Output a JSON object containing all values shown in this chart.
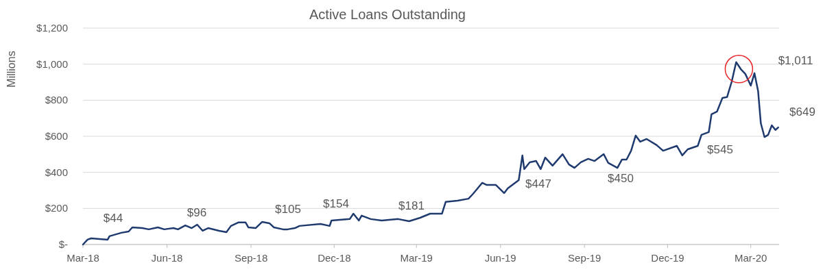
{
  "chart_data": {
    "type": "line",
    "title": "Active Loans Outstanding",
    "ylabel": "Millions",
    "x": [
      "2018-03-01",
      "2018-03-06",
      "2018-03-10",
      "2018-03-28",
      "2018-03-30",
      "2018-04-12",
      "2018-04-20",
      "2018-04-24",
      "2018-05-05",
      "2018-05-12",
      "2018-05-22",
      "2018-05-29",
      "2018-06-08",
      "2018-06-13",
      "2018-06-21",
      "2018-06-28",
      "2018-07-04",
      "2018-07-10",
      "2018-07-16",
      "2018-07-28",
      "2018-08-05",
      "2018-08-10",
      "2018-08-18",
      "2018-08-26",
      "2018-08-29",
      "2018-09-06",
      "2018-09-13",
      "2018-09-21",
      "2018-09-26",
      "2018-10-06",
      "2018-10-11",
      "2018-10-19",
      "2018-10-24",
      "2018-11-16",
      "2018-11-26",
      "2018-11-28",
      "2018-12-18",
      "2018-12-22",
      "2018-12-28",
      "2018-12-31",
      "2019-01-10",
      "2019-01-22",
      "2019-02-09",
      "2019-02-21",
      "2019-03-05",
      "2019-03-16",
      "2019-03-29",
      "2019-04-02",
      "2019-04-15",
      "2019-04-27",
      "2019-05-02",
      "2019-05-12",
      "2019-05-17",
      "2019-05-27",
      "2019-06-05",
      "2019-06-09",
      "2019-06-21",
      "2019-06-25",
      "2019-06-27",
      "2019-07-03",
      "2019-07-10",
      "2019-07-15",
      "2019-07-20",
      "2019-07-28",
      "2019-08-08",
      "2019-08-15",
      "2019-08-21",
      "2019-08-28",
      "2019-09-05",
      "2019-09-12",
      "2019-09-22",
      "2019-09-27",
      "2019-10-07",
      "2019-10-12",
      "2019-10-17",
      "2019-10-22",
      "2019-10-27",
      "2019-11-01",
      "2019-11-08",
      "2019-11-19",
      "2019-11-26",
      "2019-12-11",
      "2019-12-17",
      "2019-12-23",
      "2020-01-03",
      "2020-01-07",
      "2020-01-15",
      "2020-01-18",
      "2020-01-24",
      "2020-01-30",
      "2020-02-04",
      "2020-02-09",
      "2020-02-14",
      "2020-02-19",
      "2020-02-24",
      "2020-03-01",
      "2020-03-05",
      "2020-03-09",
      "2020-03-12",
      "2020-03-16",
      "2020-03-20",
      "2020-03-24",
      "2020-03-28",
      "2020-03-31"
    ],
    "series": [
      {
        "color": "#1f3a6e",
        "values": [
          0,
          27,
          34,
          27,
          46,
          65,
          72,
          95,
          91,
          84,
          95,
          84,
          91,
          84,
          106,
          91,
          110,
          76,
          91,
          76,
          68,
          103,
          122,
          122,
          95,
          91,
          125,
          118,
          95,
          84,
          84,
          91,
          103,
          114,
          103,
          133,
          141,
          171,
          133,
          160,
          141,
          133,
          141,
          129,
          148,
          171,
          171,
          236,
          243,
          254,
          281,
          342,
          330,
          330,
          285,
          311,
          357,
          494,
          418,
          456,
          463,
          418,
          482,
          437,
          501,
          444,
          425,
          456,
          475,
          463,
          501,
          452,
          425,
          471,
          471,
          520,
          604,
          570,
          585,
          551,
          520,
          547,
          494,
          528,
          547,
          608,
          623,
          722,
          737,
          813,
          817,
          901,
          1011,
          973,
          946,
          881,
          950,
          851,
          672,
          596,
          608,
          661,
          635,
          649
        ]
      }
    ],
    "xlim": [
      "2018-03-01",
      "2020-04-01"
    ],
    "xticks": [
      {
        "value": "2018-03-01",
        "label": "Mar-18"
      },
      {
        "value": "2018-06-01",
        "label": "Jun-18"
      },
      {
        "value": "2018-09-01",
        "label": "Sep-18"
      },
      {
        "value": "2018-12-01",
        "label": "Dec-18"
      },
      {
        "value": "2019-03-01",
        "label": "Mar-19"
      },
      {
        "value": "2019-06-01",
        "label": "Jun-19"
      },
      {
        "value": "2019-09-01",
        "label": "Sep-19"
      },
      {
        "value": "2019-12-01",
        "label": "Dec-19"
      },
      {
        "value": "2020-03-01",
        "label": "Mar-20"
      }
    ],
    "ylim": [
      0,
      1200
    ],
    "yticks": [
      {
        "value": 0,
        "label": "$-"
      },
      {
        "value": 200,
        "label": "$200"
      },
      {
        "value": 400,
        "label": "$400"
      },
      {
        "value": 600,
        "label": "$600"
      },
      {
        "value": 800,
        "label": "$800"
      },
      {
        "value": 1000,
        "label": "$1,000"
      },
      {
        "value": 1200,
        "label": "$1,200"
      }
    ],
    "grid": "y",
    "line_style": "solid",
    "annotations": [
      "$44",
      "$96",
      "$105",
      "$154",
      "$181",
      "$447",
      "$450",
      "$545",
      "$1,011",
      "$649"
    ]
  }
}
